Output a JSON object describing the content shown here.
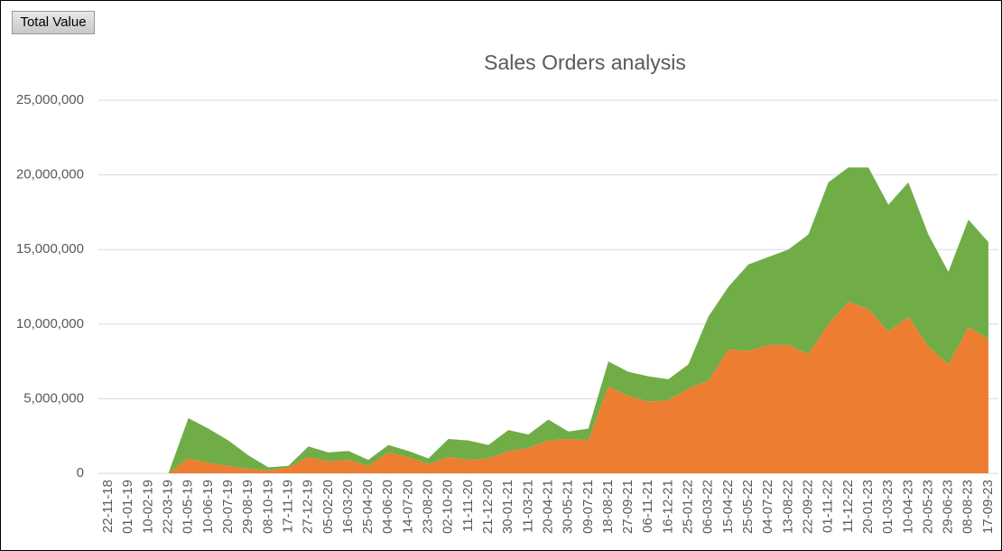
{
  "field_button": "Total Value",
  "chart_data": {
    "type": "stacked_area",
    "title": "Sales Orders analysis",
    "categories": [
      "22-11-18",
      "01-01-19",
      "10-02-19",
      "22-03-19",
      "01-05-19",
      "10-06-19",
      "20-07-19",
      "29-08-19",
      "08-10-19",
      "17-11-19",
      "27-12-19",
      "05-02-20",
      "16-03-20",
      "25-04-20",
      "04-06-20",
      "14-07-20",
      "23-08-20",
      "02-10-20",
      "11-11-20",
      "21-12-20",
      "30-01-21",
      "11-03-21",
      "20-04-21",
      "30-05-21",
      "09-07-21",
      "18-08-21",
      "27-09-21",
      "06-11-21",
      "16-12-21",
      "25-01-22",
      "06-03-22",
      "15-04-22",
      "25-05-22",
      "04-07-22",
      "13-08-22",
      "22-09-22",
      "01-11-22",
      "11-12-22",
      "20-01-23",
      "01-03-23",
      "10-04-23",
      "20-05-23",
      "29-06-23",
      "08-08-23",
      "17-09-23"
    ],
    "series": [
      {
        "color": "#ed7d31",
        "values": [
          0,
          0,
          0,
          0,
          1000000,
          700000,
          500000,
          300000,
          200000,
          400000,
          1100000,
          800000,
          900000,
          500000,
          1400000,
          1100000,
          600000,
          1100000,
          900000,
          1000000,
          1500000,
          1700000,
          2200000,
          2300000,
          2200000,
          5800000,
          5200000,
          4800000,
          4900000,
          5700000,
          6200000,
          8300000,
          8200000,
          8600000,
          8600000,
          8000000,
          10000000,
          11500000,
          11000000,
          9500000,
          10500000,
          8500000,
          7300000,
          9800000,
          9000000
        ]
      },
      {
        "color": "#70ad47",
        "values": [
          0,
          0,
          0,
          0,
          2700000,
          2300000,
          1700000,
          900000,
          200000,
          100000,
          700000,
          600000,
          600000,
          400000,
          500000,
          400000,
          400000,
          1200000,
          1300000,
          900000,
          1400000,
          900000,
          1400000,
          500000,
          800000,
          1700000,
          1600000,
          1700000,
          1400000,
          1600000,
          4300000,
          4200000,
          5800000,
          5900000,
          6400000,
          8000000,
          9500000,
          9000000,
          9500000,
          8500000,
          9000000,
          7500000,
          6200000,
          7200000,
          6500000
        ]
      }
    ],
    "ylim": [
      0,
      25000000
    ],
    "yticks": [
      0,
      {
        "value": 5000000,
        "label": "5,000,000"
      },
      {
        "value": 10000000,
        "label": "10,000,000"
      },
      {
        "value": 15000000,
        "label": "15,000,000"
      },
      {
        "value": 20000000,
        "label": "20,000,000"
      },
      {
        "value": 25000000,
        "label": "25,000,000"
      }
    ],
    "grid": true
  }
}
